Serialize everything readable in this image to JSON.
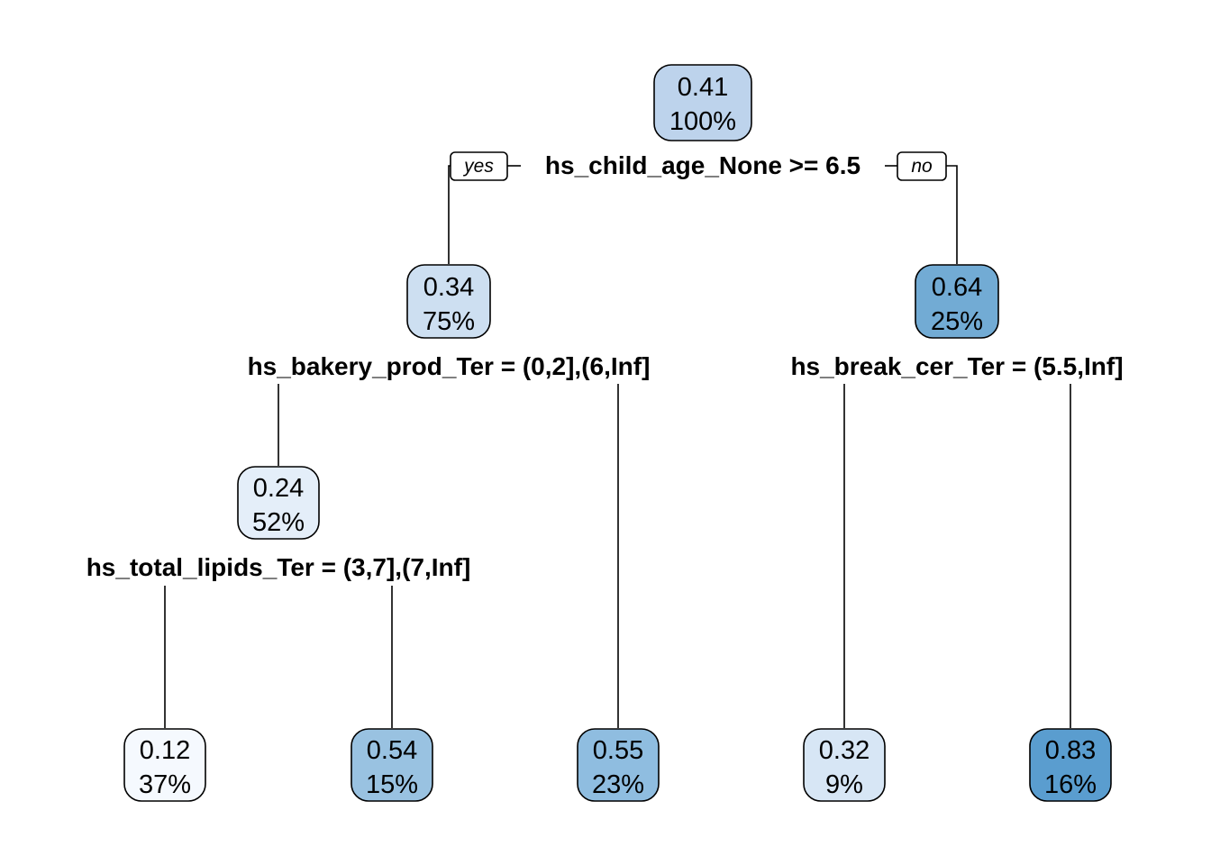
{
  "tree": {
    "nodes": [
      {
        "id": "n1",
        "value": "0.41",
        "percent": "100%",
        "fill": "#bdd3ec"
      },
      {
        "id": "n2",
        "value": "0.34",
        "percent": "75%",
        "fill": "#cddff1"
      },
      {
        "id": "n3",
        "value": "0.64",
        "percent": "25%",
        "fill": "#72abd4"
      },
      {
        "id": "n4",
        "value": "0.24",
        "percent": "52%",
        "fill": "#e4eef9"
      },
      {
        "id": "n5",
        "value": "0.12",
        "percent": "37%",
        "fill": "#f5f9fe"
      },
      {
        "id": "n6",
        "value": "0.54",
        "percent": "15%",
        "fill": "#99c2e1"
      },
      {
        "id": "n7",
        "value": "0.55",
        "percent": "23%",
        "fill": "#8fbde0"
      },
      {
        "id": "n8",
        "value": "0.32",
        "percent": "9%",
        "fill": "#d7e6f5"
      },
      {
        "id": "n9",
        "value": "0.83",
        "percent": "16%",
        "fill": "#5a9dcf"
      }
    ],
    "splits": {
      "root": "hs_child_age_None >= 6.5",
      "left": "hs_bakery_prod_Ter = (0,2],(6,Inf]",
      "right": "hs_break_cer_Ter = (5.5,Inf]",
      "leftleft": "hs_total_lipids_Ter = (3,7],(7,Inf]"
    },
    "branch_labels": {
      "yes": "yes",
      "no": "no"
    }
  }
}
